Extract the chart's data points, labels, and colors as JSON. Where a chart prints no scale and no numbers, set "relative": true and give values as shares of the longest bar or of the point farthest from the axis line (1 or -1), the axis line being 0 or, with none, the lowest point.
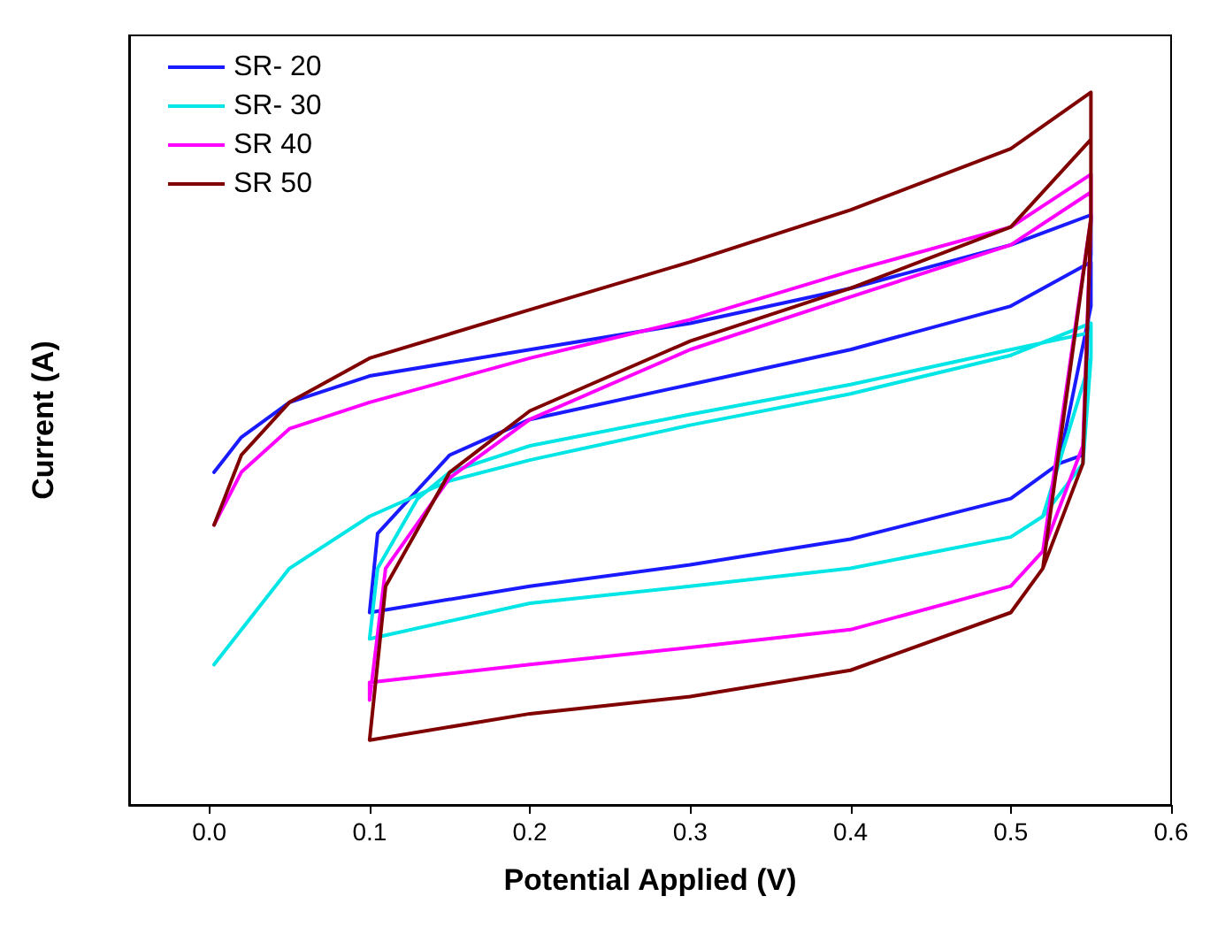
{
  "chart_data": {
    "type": "line",
    "xlabel": "Potential Applied (V)",
    "ylabel": "Current (A)",
    "relative": true,
    "legend": "top left",
    "marker": "none",
    "line_style": "solid",
    "grid": false,
    "xlim": [
      -0.05,
      0.6
    ],
    "xticks": [
      {
        "value": 0,
        "label": "0.0"
      },
      {
        "value": 0.1,
        "label": "0.1"
      },
      {
        "value": 0.2,
        "label": "0.2"
      },
      {
        "value": 0.3,
        "label": "0.3"
      },
      {
        "value": 0.4,
        "label": "0.4"
      },
      {
        "value": 0.5,
        "label": "0.5"
      },
      {
        "value": 0.6,
        "label": "0.6"
      }
    ],
    "series": [
      {
        "name": "SR- 20",
        "color": "#1a1aff",
        "x": [
          0.003,
          0.02,
          0.05,
          0.1,
          0.2,
          0.3,
          0.4,
          0.5,
          0.55,
          0.55,
          0.545,
          0.53,
          0.5,
          0.4,
          0.3,
          0.2,
          0.1,
          0.105,
          0.15,
          0.2,
          0.3,
          0.4,
          0.5,
          0.55,
          0.55,
          0.53,
          0.5,
          0.4,
          0.3,
          0.2,
          0.1
        ],
        "values": [
          0.467,
          0.516,
          0.565,
          0.602,
          0.639,
          0.676,
          0.725,
          0.786,
          0.828,
          0.774,
          0.491,
          0.479,
          0.43,
          0.373,
          0.337,
          0.307,
          0.27,
          0.381,
          0.491,
          0.541,
          0.59,
          0.639,
          0.7,
          0.762,
          0.7,
          0.479,
          0.43,
          0.373,
          0.337,
          0.307,
          0.27
        ]
      },
      {
        "name": "SR- 30",
        "color": "#00e5e5",
        "x": [
          0.003,
          0.05,
          0.1,
          0.15,
          0.2,
          0.3,
          0.4,
          0.5,
          0.55,
          0.55,
          0.545,
          0.52,
          0.5,
          0.4,
          0.3,
          0.2,
          0.1,
          0.105,
          0.13,
          0.15,
          0.2,
          0.3,
          0.4,
          0.5,
          0.55,
          0.55,
          0.52,
          0.5,
          0.4,
          0.3,
          0.2,
          0.1
        ],
        "values": [
          0.197,
          0.332,
          0.405,
          0.455,
          0.484,
          0.533,
          0.577,
          0.631,
          0.676,
          0.627,
          0.479,
          0.405,
          0.376,
          0.332,
          0.307,
          0.283,
          0.233,
          0.332,
          0.43,
          0.467,
          0.504,
          0.548,
          0.59,
          0.639,
          0.663,
          0.627,
          0.405,
          0.376,
          0.332,
          0.307,
          0.283,
          0.233
        ]
      },
      {
        "name": "SR 40",
        "color": "#ff00ff",
        "x": [
          0.003,
          0.02,
          0.05,
          0.1,
          0.2,
          0.3,
          0.4,
          0.5,
          0.55,
          0.55,
          0.545,
          0.52,
          0.5,
          0.4,
          0.3,
          0.2,
          0.1,
          0.1,
          0.11,
          0.15,
          0.2,
          0.3,
          0.4,
          0.5,
          0.55,
          0.55,
          0.52,
          0.5,
          0.4,
          0.3,
          0.2,
          0.1
        ],
        "values": [
          0.393,
          0.467,
          0.528,
          0.565,
          0.627,
          0.681,
          0.749,
          0.811,
          0.885,
          0.823,
          0.504,
          0.356,
          0.307,
          0.246,
          0.221,
          0.197,
          0.172,
          0.147,
          0.332,
          0.459,
          0.541,
          0.639,
          0.713,
          0.786,
          0.86,
          0.823,
          0.356,
          0.307,
          0.246,
          0.221,
          0.197,
          0.172
        ]
      },
      {
        "name": "SR 50",
        "color": "#800000",
        "x": [
          0.003,
          0.02,
          0.05,
          0.1,
          0.2,
          0.3,
          0.4,
          0.5,
          0.55,
          0.55,
          0.545,
          0.52,
          0.5,
          0.4,
          0.3,
          0.2,
          0.1,
          0.1,
          0.11,
          0.15,
          0.2,
          0.3,
          0.4,
          0.5,
          0.55,
          0.55,
          0.52,
          0.5,
          0.4,
          0.3,
          0.2,
          0.1
        ],
        "values": [
          0.393,
          0.491,
          0.565,
          0.627,
          0.695,
          0.762,
          0.835,
          0.921,
          1.0,
          0.823,
          0.479,
          0.332,
          0.27,
          0.189,
          0.152,
          0.128,
          0.091,
          0.091,
          0.307,
          0.467,
          0.553,
          0.651,
          0.725,
          0.811,
          0.934,
          0.823,
          0.332,
          0.27,
          0.189,
          0.152,
          0.128,
          0.091
        ]
      }
    ]
  }
}
